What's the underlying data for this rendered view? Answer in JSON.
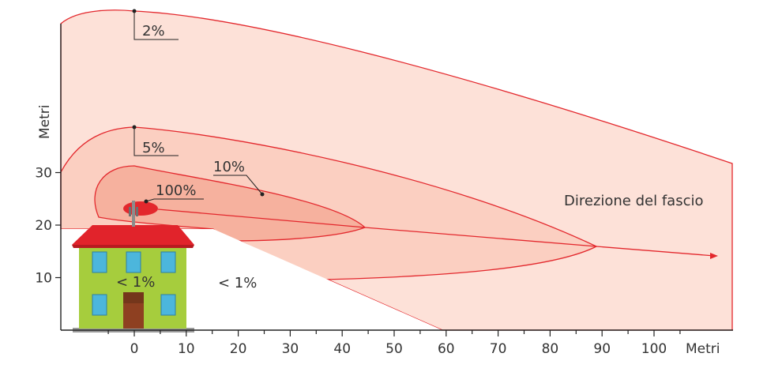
{
  "colors": {
    "zone_outer": "#fde1d8",
    "zone_mid": "#fbcfc1",
    "zone_inner": "#f6b19e",
    "zone_core": "#e3282d",
    "line": "#e3282d",
    "axis": "#222222",
    "house_wall": "#a6cd3d",
    "house_roof": "#e1232b",
    "house_window": "#4cb6dc",
    "house_door": "#8e4021"
  },
  "axes": {
    "y_label": "Metri",
    "x_label": "Metri",
    "x_ticks": [
      "0",
      "10",
      "20",
      "30",
      "40",
      "50",
      "60",
      "70",
      "80",
      "90",
      "100"
    ],
    "y_ticks": [
      "10",
      "20",
      "30"
    ]
  },
  "zones": [
    {
      "label": "2%"
    },
    {
      "label": "5%"
    },
    {
      "label": "10%"
    },
    {
      "label": "100%"
    }
  ],
  "annotations": {
    "beam_direction": "Direzione del fascio",
    "inside_house": "< 1%",
    "below_building": "< 1%"
  },
  "icons": {
    "antenna": "antenna-icon",
    "house": "house-icon"
  }
}
